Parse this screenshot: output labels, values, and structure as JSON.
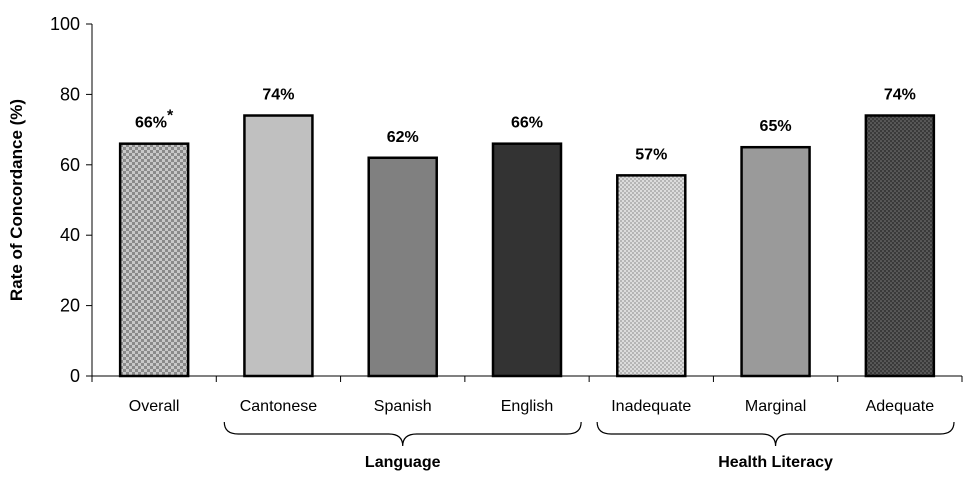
{
  "chart_data": {
    "type": "bar",
    "categories": [
      "Overall",
      "Cantonese",
      "Spanish",
      "English",
      "Inadequate",
      "Marginal",
      "Adequate"
    ],
    "values": [
      66,
      74,
      62,
      66,
      57,
      65,
      74
    ],
    "data_labels": [
      "66%",
      "74%",
      "62%",
      "66%",
      "57%",
      "65%",
      "74%"
    ],
    "annotations": {
      "overall_marker": "*"
    },
    "groups": [
      {
        "label": "Language",
        "categories": [
          "Cantonese",
          "Spanish",
          "English"
        ]
      },
      {
        "label": "Health Literacy",
        "categories": [
          "Inadequate",
          "Marginal",
          "Adequate"
        ]
      }
    ],
    "title": "",
    "xlabel": "",
    "ylabel": "Rate of Concordance (%)",
    "ylim": [
      0,
      100
    ],
    "yticks": [
      0,
      20,
      40,
      60,
      80,
      100
    ],
    "grid": false,
    "bar_fills": [
      "pattern-check",
      "#c0c0c0",
      "#808080",
      "#333333",
      "pattern-light-dots",
      "#9a9a9a",
      "pattern-dark-dots"
    ]
  }
}
